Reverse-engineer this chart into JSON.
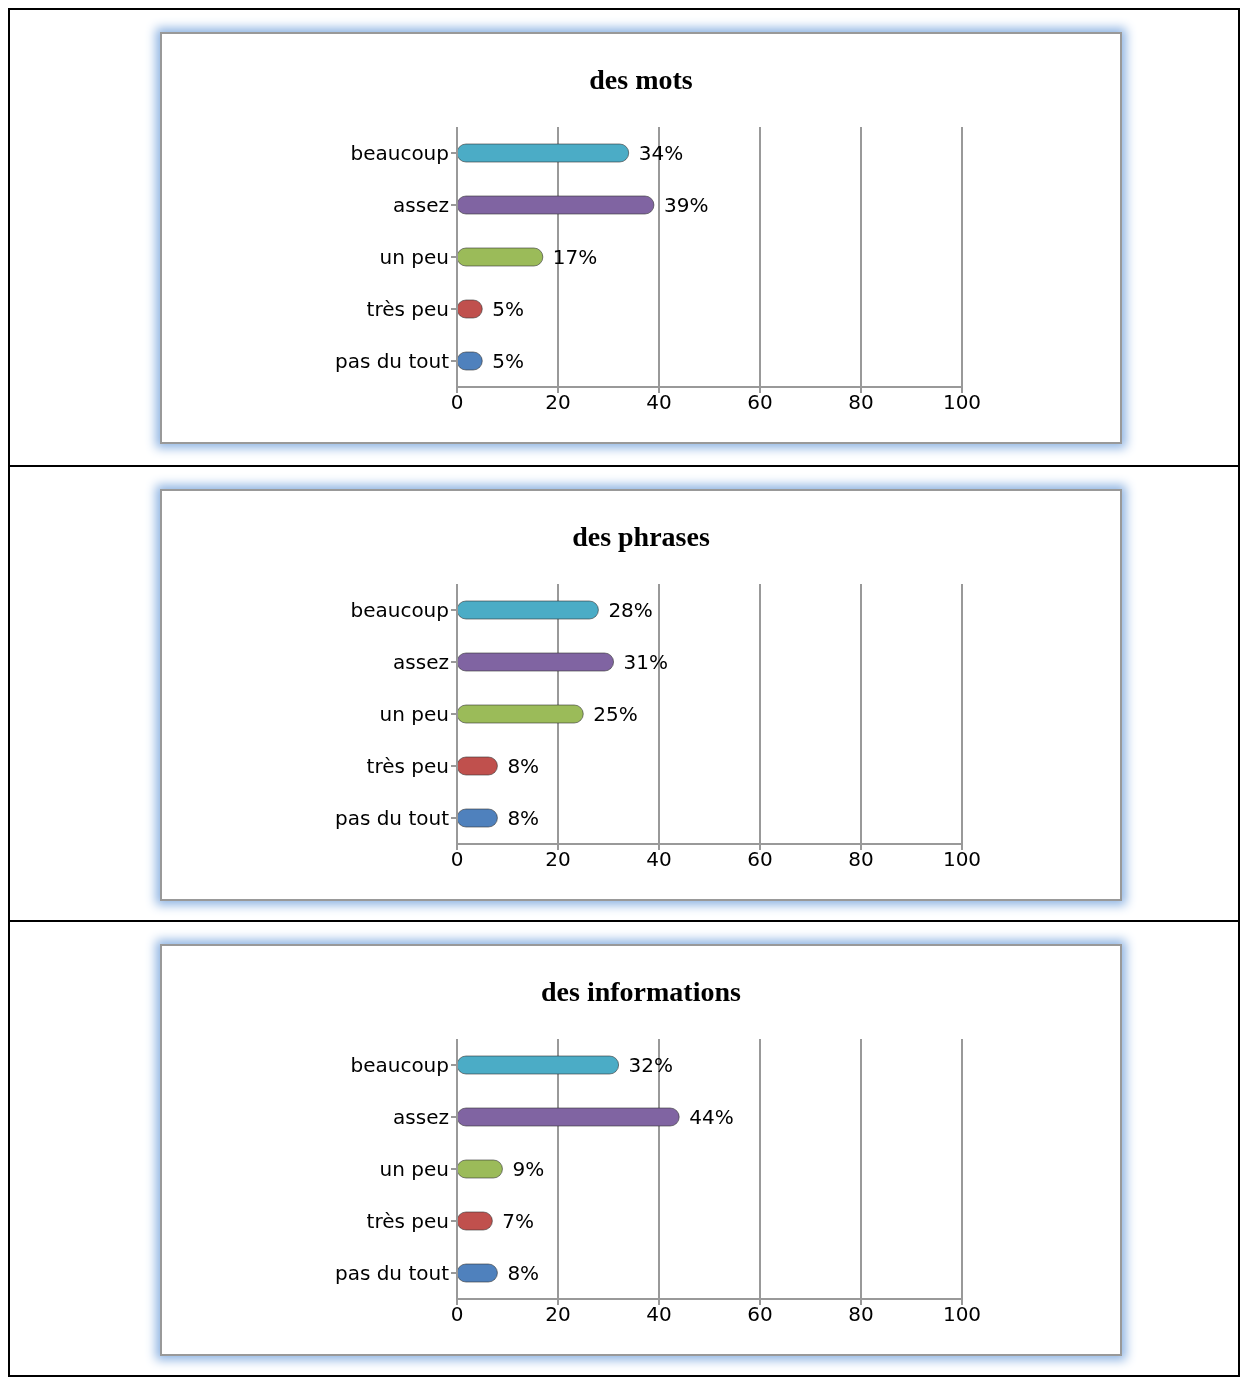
{
  "chart_data": [
    {
      "type": "bar",
      "title": "des mots",
      "orientation": "horizontal",
      "categories": [
        "beaucoup",
        "assez",
        "un peu",
        "très peu",
        "pas du tout"
      ],
      "values": [
        34,
        39,
        17,
        5,
        5
      ],
      "value_labels": [
        "34%",
        "39%",
        "17%",
        "5%",
        "5%"
      ],
      "colors": [
        "#4bacc6",
        "#8064a2",
        "#9bbb59",
        "#c0504d",
        "#4f81bd"
      ],
      "xlim": [
        0,
        100
      ],
      "xticks": [
        0,
        20,
        40,
        60,
        80,
        100
      ],
      "grid": "x",
      "legend": false
    },
    {
      "type": "bar",
      "title": "des phrases",
      "orientation": "horizontal",
      "categories": [
        "beaucoup",
        "assez",
        "un peu",
        "très peu",
        "pas du tout"
      ],
      "values": [
        28,
        31,
        25,
        8,
        8
      ],
      "value_labels": [
        "28%",
        "31%",
        "25%",
        "8%",
        "8%"
      ],
      "colors": [
        "#4bacc6",
        "#8064a2",
        "#9bbb59",
        "#c0504d",
        "#4f81bd"
      ],
      "xlim": [
        0,
        100
      ],
      "xticks": [
        0,
        20,
        40,
        60,
        80,
        100
      ],
      "grid": "x",
      "legend": false
    },
    {
      "type": "bar",
      "title": "des informations",
      "orientation": "horizontal",
      "categories": [
        "beaucoup",
        "assez",
        "un peu",
        "très peu",
        "pas du tout"
      ],
      "values": [
        32,
        44,
        9,
        7,
        8
      ],
      "value_labels": [
        "32%",
        "44%",
        "9%",
        "7%",
        "8%"
      ],
      "colors": [
        "#4bacc6",
        "#8064a2",
        "#9bbb59",
        "#c0504d",
        "#4f81bd"
      ],
      "xlim": [
        0,
        100
      ],
      "xticks": [
        0,
        20,
        40,
        60,
        80,
        100
      ],
      "grid": "x",
      "legend": false
    }
  ]
}
